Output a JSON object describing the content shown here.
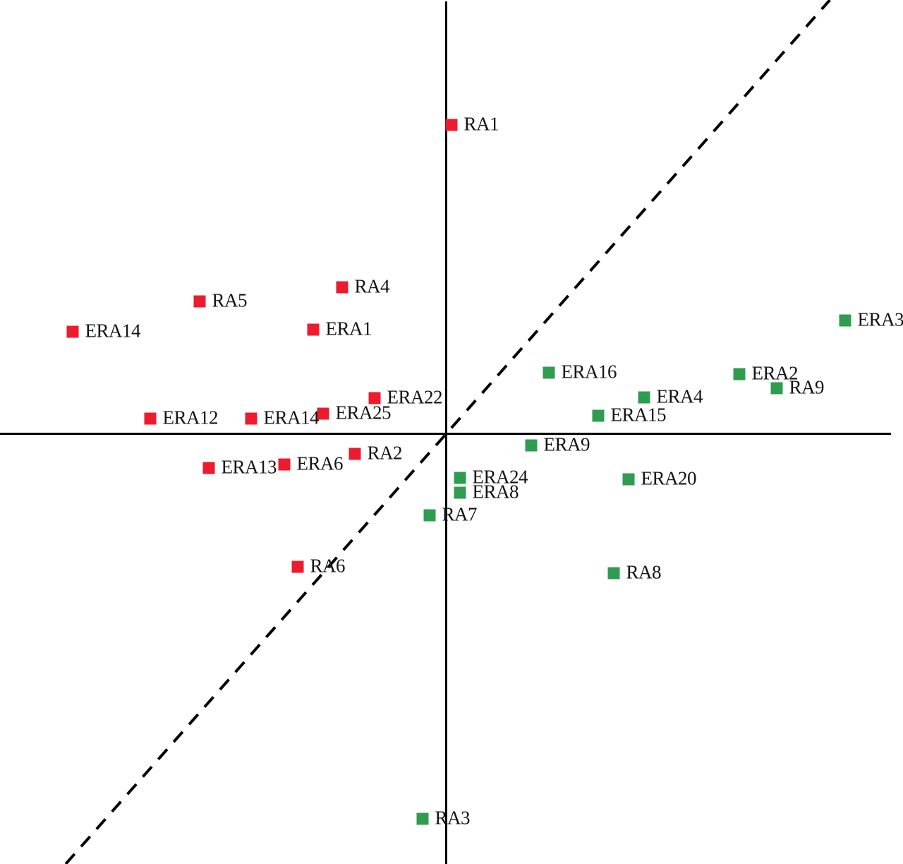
{
  "figure": {
    "description": "Scatter biplot with red and green labeled square markers, unlabeled axes crossing near the center, and a dashed diagonal reference line through the origin",
    "background_color": "#ffffff",
    "axis_color": "#000000",
    "text_color": "#141414"
  },
  "chart_data": {
    "type": "scatter",
    "title": "",
    "xlabel": "",
    "ylabel": "",
    "x_range": [
      -1.27,
      1.3
    ],
    "y_range": [
      -1.22,
      1.23
    ],
    "grid": false,
    "legend": "none",
    "ticks": "none",
    "marker_shape": "square",
    "reference_line": {
      "style": "dashed",
      "through_origin": true,
      "slope": 1.13,
      "color": "#000000"
    },
    "series": [
      {
        "name": "red-group",
        "color": "#EC1C2E",
        "points": [
          {
            "label": "RA1",
            "x": 0.015,
            "y": 0.875
          },
          {
            "label": "RA4",
            "x": -0.295,
            "y": 0.415
          },
          {
            "label": "RA5",
            "x": -0.699,
            "y": 0.375
          },
          {
            "label": "ERA14",
            "x": -1.059,
            "y": 0.289
          },
          {
            "label": "ERA1",
            "x": -0.377,
            "y": 0.295
          },
          {
            "label": "ERA22",
            "x": -0.203,
            "y": 0.101
          },
          {
            "label": "ERA25",
            "x": -0.349,
            "y": 0.057
          },
          {
            "label": "ERA12",
            "x": -0.839,
            "y": 0.043
          },
          {
            "label": "ERA14",
            "x": -0.553,
            "y": 0.043
          },
          {
            "label": "RA2",
            "x": -0.259,
            "y": -0.057
          },
          {
            "label": "ERA6",
            "x": -0.459,
            "y": -0.087
          },
          {
            "label": "ERA13",
            "x": -0.673,
            "y": -0.097
          },
          {
            "label": "RA6",
            "x": -0.421,
            "y": -0.377
          }
        ]
      },
      {
        "name": "green-group",
        "color": "#2F9C50",
        "points": [
          {
            "label": "ERA3",
            "x": 1.131,
            "y": 0.321
          },
          {
            "label": "ERA16",
            "x": 0.291,
            "y": 0.173
          },
          {
            "label": "ERA2",
            "x": 0.831,
            "y": 0.169
          },
          {
            "label": "RA9",
            "x": 0.937,
            "y": 0.129
          },
          {
            "label": "ERA4",
            "x": 0.561,
            "y": 0.103
          },
          {
            "label": "ERA15",
            "x": 0.431,
            "y": 0.051
          },
          {
            "label": "ERA9",
            "x": 0.241,
            "y": -0.033
          },
          {
            "label": "ERA24",
            "x": 0.039,
            "y": -0.125
          },
          {
            "label": "ERA8",
            "x": 0.039,
            "y": -0.167
          },
          {
            "label": "RA7",
            "x": -0.047,
            "y": -0.231
          },
          {
            "label": "ERA20",
            "x": 0.517,
            "y": -0.129
          },
          {
            "label": "RA8",
            "x": 0.475,
            "y": -0.395
          },
          {
            "label": "RA3",
            "x": -0.067,
            "y": -1.091
          }
        ]
      }
    ]
  }
}
